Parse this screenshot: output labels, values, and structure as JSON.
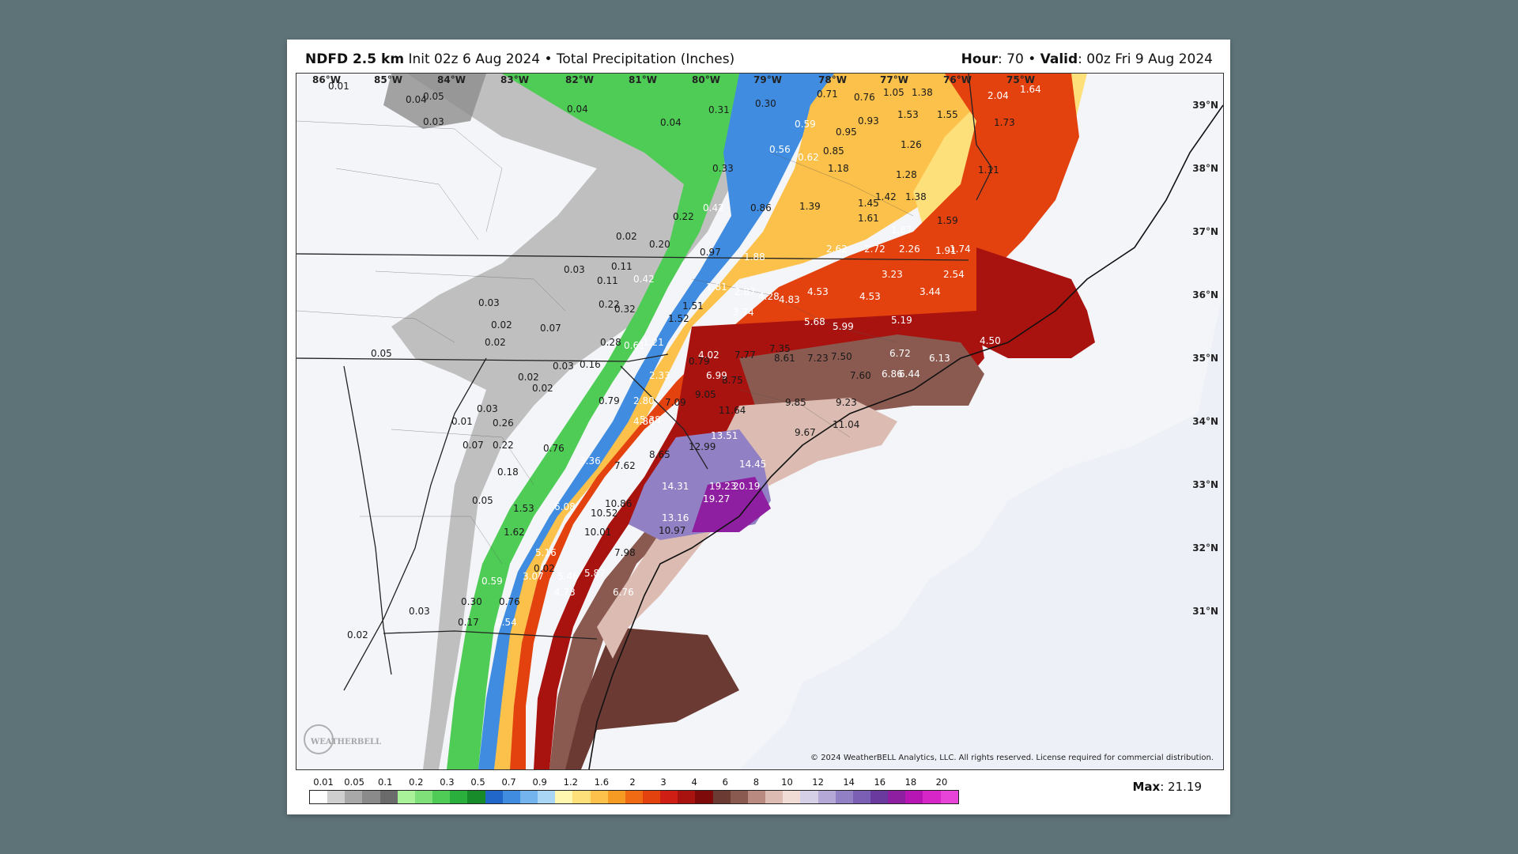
{
  "header": {
    "model": "NDFD 2.5 km",
    "init": "Init 02z 6 Aug 2024",
    "separator": "•",
    "product": "Total Precipitation (Inches)",
    "hour_label": "Hour",
    "hour_value": ": 70",
    "valid_label": "Valid",
    "valid_value": ": 00z Fri 9 Aug 2024"
  },
  "max": {
    "label": "Max",
    "value": ": 21.19"
  },
  "copyright": "© 2024 WeatherBELL Analytics, LLC. All rights reserved. License required for commercial distribution.",
  "watermark": "WEATHERBELL",
  "lon_labels": [
    "86°W",
    "85°W",
    "84°W",
    "83°W",
    "82°W",
    "81°W",
    "80°W",
    "79°W",
    "78°W",
    "77°W",
    "76°W",
    "75°W"
  ],
  "lat_labels": [
    "39°N",
    "38°N",
    "37°N",
    "36°N",
    "35°N",
    "34°N",
    "33°N",
    "32°N",
    "31°N"
  ],
  "colorbar": {
    "labels": [
      "0.01",
      "0.05",
      "0.1",
      "0.2",
      "0.3",
      "0.5",
      "0.7",
      "0.9",
      "1.2",
      "1.6",
      "2",
      "3",
      "4",
      "6",
      "8",
      "10",
      "12",
      "14",
      "16",
      "18",
      "20"
    ],
    "colors": [
      "#ffffff",
      "#cfcfcf",
      "#a8a8a8",
      "#8a8a8a",
      "#6b6b6b",
      "#a9f29a",
      "#7fe07a",
      "#4fcc55",
      "#2aae3c",
      "#178a2a",
      "#2166c9",
      "#3f8ce0",
      "#74b4ee",
      "#a9d6f5",
      "#fff6b0",
      "#fde07a",
      "#fbc14a",
      "#f59a22",
      "#ef6a12",
      "#e3420f",
      "#cf1f14",
      "#a8120f",
      "#7e0a0a",
      "#6b3a33",
      "#8a5a50",
      "#b88a80",
      "#dcbcb2",
      "#f0dcd4",
      "#d6d0e6",
      "#b4a8d6",
      "#9280c4",
      "#7a5fb5",
      "#6a3a9e",
      "#8e1fa0",
      "#b816b4",
      "#d626c8",
      "#e845d8"
    ]
  },
  "accumulations": [
    {
      "t": "0.01",
      "c": "d"
    },
    {
      "t": "0.05",
      "c": "d"
    },
    {
      "t": "0.04",
      "c": "d"
    },
    {
      "t": "0.03",
      "c": "d"
    },
    {
      "t": "0.04",
      "c": "d"
    },
    {
      "t": "0.04",
      "c": "d"
    },
    {
      "t": "0.31",
      "c": "d"
    },
    {
      "t": "0.30",
      "c": "d"
    },
    {
      "t": "0.71",
      "c": "d"
    },
    {
      "t": "0.76",
      "c": "d"
    },
    {
      "t": "1.05",
      "c": "d"
    },
    {
      "t": "1.38",
      "c": "d"
    },
    {
      "t": "2.04",
      "c": "l"
    },
    {
      "t": "1.64",
      "c": "l"
    },
    {
      "t": "1.53",
      "c": "d"
    },
    {
      "t": "1.55",
      "c": "d"
    },
    {
      "t": "1.73",
      "c": "d"
    },
    {
      "t": "0.59",
      "c": "l"
    },
    {
      "t": "0.93",
      "c": "d"
    },
    {
      "t": "0.95",
      "c": "d"
    },
    {
      "t": "0.56",
      "c": "l"
    },
    {
      "t": "0.62",
      "c": "l"
    },
    {
      "t": "0.85",
      "c": "d"
    },
    {
      "t": "1.18",
      "c": "d"
    },
    {
      "t": "1.26",
      "c": "d"
    },
    {
      "t": "0.33",
      "c": "d"
    },
    {
      "t": "1.28",
      "c": "d"
    },
    {
      "t": "1.11",
      "c": "d"
    },
    {
      "t": "0.42",
      "c": "l"
    },
    {
      "t": "0.86",
      "c": "d"
    },
    {
      "t": "1.39",
      "c": "d"
    },
    {
      "t": "1.45",
      "c": "d"
    },
    {
      "t": "1.42",
      "c": "d"
    },
    {
      "t": "1.38",
      "c": "d"
    },
    {
      "t": "0.22",
      "c": "d"
    },
    {
      "t": "1.61",
      "c": "d"
    },
    {
      "t": "1.59",
      "c": "d"
    },
    {
      "t": "1.87",
      "c": "l"
    },
    {
      "t": "0.02",
      "c": "d"
    },
    {
      "t": "0.20",
      "c": "d"
    },
    {
      "t": "0.97",
      "c": "d"
    },
    {
      "t": "2.62",
      "c": "l"
    },
    {
      "t": "2.72",
      "c": "l"
    },
    {
      "t": "2.26",
      "c": "l"
    },
    {
      "t": "1.91",
      "c": "l"
    },
    {
      "t": "1.74",
      "c": "l"
    },
    {
      "t": "1.88",
      "c": "l"
    },
    {
      "t": "0.03",
      "c": "d"
    },
    {
      "t": "0.11",
      "c": "d"
    },
    {
      "t": "3.23",
      "c": "l"
    },
    {
      "t": "2.54",
      "c": "l"
    },
    {
      "t": "0.11",
      "c": "d"
    },
    {
      "t": "0.42",
      "c": "l"
    },
    {
      "t": "1.81",
      "c": "l"
    },
    {
      "t": "2.87",
      "c": "l"
    },
    {
      "t": "4.28",
      "c": "l"
    },
    {
      "t": "4.53",
      "c": "l"
    },
    {
      "t": "4.53",
      "c": "l"
    },
    {
      "t": "3.44",
      "c": "l"
    },
    {
      "t": "4.83",
      "c": "l"
    },
    {
      "t": "0.03",
      "c": "d"
    },
    {
      "t": "0.22",
      "c": "d"
    },
    {
      "t": "0.32",
      "c": "d"
    },
    {
      "t": "1.51",
      "c": "d"
    },
    {
      "t": "1.52",
      "c": "d"
    },
    {
      "t": "3.74",
      "c": "l"
    },
    {
      "t": "0.02",
      "c": "d"
    },
    {
      "t": "0.07",
      "c": "d"
    },
    {
      "t": "5.68",
      "c": "l"
    },
    {
      "t": "5.99",
      "c": "l"
    },
    {
      "t": "5.19",
      "c": "l"
    },
    {
      "t": "0.02",
      "c": "d"
    },
    {
      "t": "0.28",
      "c": "d"
    },
    {
      "t": "0.61",
      "c": "l"
    },
    {
      "t": "1.21",
      "c": "l"
    },
    {
      "t": "4.50",
      "c": "l"
    },
    {
      "t": "0.05",
      "c": "d"
    },
    {
      "t": "7.35",
      "c": "d"
    },
    {
      "t": "4.02",
      "c": "l"
    },
    {
      "t": "7.77",
      "c": "d"
    },
    {
      "t": "8.61",
      "c": "d"
    },
    {
      "t": "7.23",
      "c": "d"
    },
    {
      "t": "7.50",
      "c": "d"
    },
    {
      "t": "6.72",
      "c": "l"
    },
    {
      "t": "6.13",
      "c": "l"
    },
    {
      "t": "0.03",
      "c": "d"
    },
    {
      "t": "0.16",
      "c": "d"
    },
    {
      "t": "0.79",
      "c": "d"
    },
    {
      "t": "2.33",
      "c": "l"
    },
    {
      "t": "6.99",
      "c": "l"
    },
    {
      "t": "8.75",
      "c": "d"
    },
    {
      "t": "7.60",
      "c": "d"
    },
    {
      "t": "6.86",
      "c": "l"
    },
    {
      "t": "6.44",
      "c": "l"
    },
    {
      "t": "0.02",
      "c": "d"
    },
    {
      "t": "0.02",
      "c": "d"
    },
    {
      "t": "9.05",
      "c": "d"
    },
    {
      "t": "0.79",
      "c": "d"
    },
    {
      "t": "2.80",
      "c": "l"
    },
    {
      "t": "7.09",
      "c": "d"
    },
    {
      "t": "9.85",
      "c": "d"
    },
    {
      "t": "9.23",
      "c": "d"
    },
    {
      "t": "0.03",
      "c": "d"
    },
    {
      "t": "11.64",
      "c": "d"
    },
    {
      "t": "0.01",
      "c": "d"
    },
    {
      "t": "0.26",
      "c": "d"
    },
    {
      "t": "4.86",
      "c": "l"
    },
    {
      "t": "5.38",
      "c": "l"
    },
    {
      "t": "11.04",
      "c": "d"
    },
    {
      "t": "9.67",
      "c": "d"
    },
    {
      "t": "13.51",
      "c": "l"
    },
    {
      "t": "0.07",
      "c": "d"
    },
    {
      "t": "0.22",
      "c": "d"
    },
    {
      "t": "0.76",
      "c": "d"
    },
    {
      "t": "12.99",
      "c": "d"
    },
    {
      "t": "8.65",
      "c": "d"
    },
    {
      "t": "3.36",
      "c": "l"
    },
    {
      "t": "14.45",
      "c": "l"
    },
    {
      "t": "7.62",
      "c": "d"
    },
    {
      "t": "0.18",
      "c": "d"
    },
    {
      "t": "14.31",
      "c": "l"
    },
    {
      "t": "19.23",
      "c": "l"
    },
    {
      "t": "20.19",
      "c": "l"
    },
    {
      "t": "19.27",
      "c": "l"
    },
    {
      "t": "0.05",
      "c": "d"
    },
    {
      "t": "6.08",
      "c": "l"
    },
    {
      "t": "1.53",
      "c": "d"
    },
    {
      "t": "10.86",
      "c": "d"
    },
    {
      "t": "10.52",
      "c": "d"
    },
    {
      "t": "13.16",
      "c": "l"
    },
    {
      "t": "1.62",
      "c": "d"
    },
    {
      "t": "10.01",
      "c": "d"
    },
    {
      "t": "10.97",
      "c": "d"
    },
    {
      "t": "5.16",
      "c": "l"
    },
    {
      "t": "7.98",
      "c": "d"
    },
    {
      "t": "0.02",
      "c": "d"
    },
    {
      "t": "3.07",
      "c": "l"
    },
    {
      "t": "5.46",
      "c": "l"
    },
    {
      "t": "5.87",
      "c": "l"
    },
    {
      "t": "0.59",
      "c": "l"
    },
    {
      "t": "4.73",
      "c": "l"
    },
    {
      "t": "6.76",
      "c": "l"
    },
    {
      "t": "0.30",
      "c": "d"
    },
    {
      "t": "0.76",
      "c": "d"
    },
    {
      "t": "0.03",
      "c": "d"
    },
    {
      "t": "0.17",
      "c": "d"
    },
    {
      "t": "0.54",
      "c": "l"
    },
    {
      "t": "0.02",
      "c": "d"
    }
  ]
}
